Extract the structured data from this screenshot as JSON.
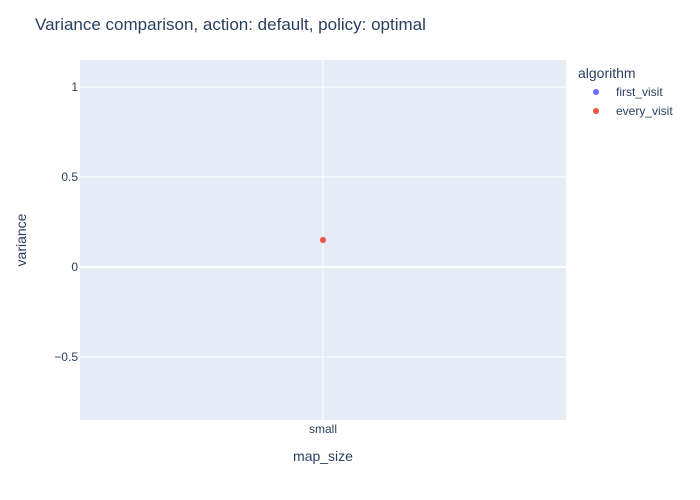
{
  "chart_data": {
    "type": "scatter",
    "title": "Variance comparison, action: default, policy: optimal",
    "xlabel": "map_size",
    "ylabel": "variance",
    "categories": [
      "small"
    ],
    "ylim": [
      -0.85,
      1.15
    ],
    "yticks": [
      -0.5,
      0,
      0.5,
      1
    ],
    "ytick_labels": [
      "−0.5",
      "0",
      "0.5",
      "1"
    ],
    "grid": true,
    "legend": {
      "title": "algorithm",
      "position": "top-right",
      "entries": [
        "first_visit",
        "every_visit"
      ]
    },
    "series": [
      {
        "name": "first_visit",
        "color": "#636efa",
        "points": [
          {
            "x": "small",
            "y": 0.15
          }
        ]
      },
      {
        "name": "every_visit",
        "color": "#ef553b",
        "points": [
          {
            "x": "small",
            "y": 0.15
          }
        ]
      }
    ],
    "colors": {
      "plot_bg": "#e5ecf6",
      "grid": "#ffffff",
      "text": "#2a3f5f"
    }
  }
}
